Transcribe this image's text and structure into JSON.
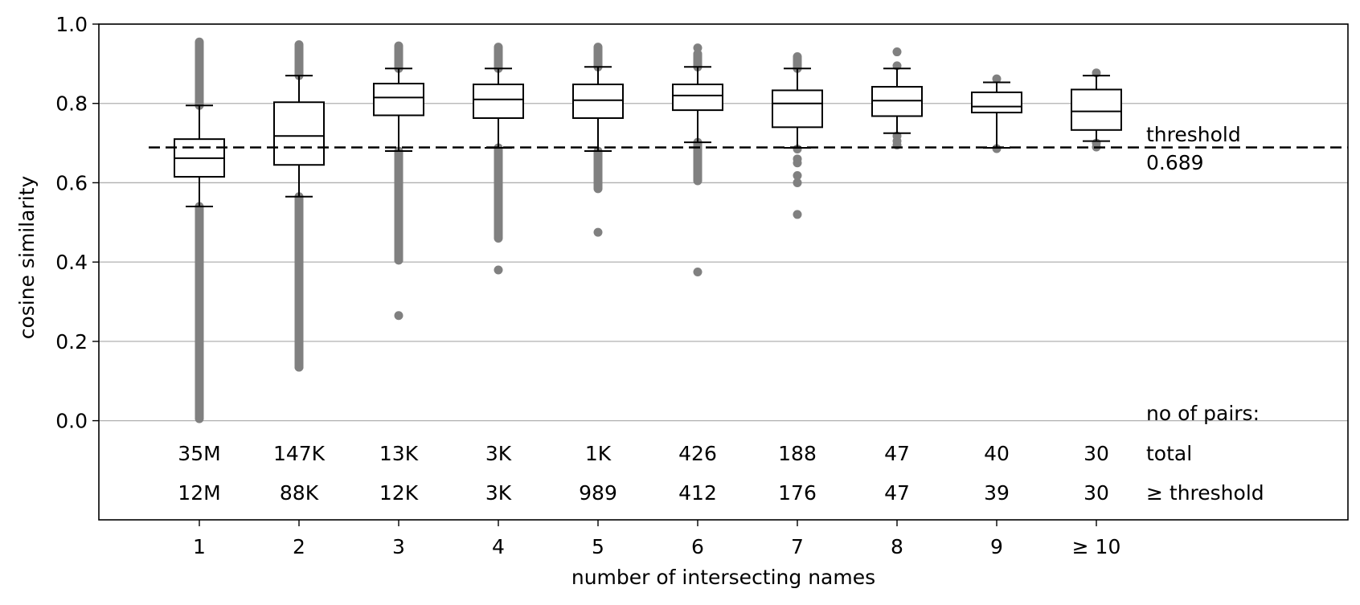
{
  "chart_data": {
    "type": "box",
    "xlabel": "number of intersecting names",
    "ylabel": "cosine similarity",
    "ylim": [
      -0.25,
      1.0
    ],
    "yticks": [
      "0.0",
      "0.2",
      "0.4",
      "0.6",
      "0.8",
      "1.0"
    ],
    "ytick_values": [
      0.0,
      0.2,
      0.4,
      0.6,
      0.8,
      1.0
    ],
    "grid": "horizontal",
    "categories": [
      "1",
      "2",
      "3",
      "4",
      "5",
      "6",
      "7",
      "8",
      "9",
      "≥ 10"
    ],
    "boxes": [
      {
        "whislo": 0.54,
        "q1": 0.615,
        "med": 0.662,
        "q3": 0.71,
        "whishi": 0.795
      },
      {
        "whislo": 0.565,
        "q1": 0.645,
        "med": 0.718,
        "q3": 0.803,
        "whishi": 0.87
      },
      {
        "whislo": 0.68,
        "q1": 0.77,
        "med": 0.815,
        "q3": 0.85,
        "whishi": 0.888
      },
      {
        "whislo": 0.688,
        "q1": 0.763,
        "med": 0.81,
        "q3": 0.848,
        "whishi": 0.888
      },
      {
        "whislo": 0.68,
        "q1": 0.763,
        "med": 0.808,
        "q3": 0.848,
        "whishi": 0.892
      },
      {
        "whislo": 0.702,
        "q1": 0.783,
        "med": 0.82,
        "q3": 0.848,
        "whishi": 0.892
      },
      {
        "whislo": 0.688,
        "q1": 0.74,
        "med": 0.8,
        "q3": 0.833,
        "whishi": 0.888
      },
      {
        "whislo": 0.725,
        "q1": 0.768,
        "med": 0.807,
        "q3": 0.842,
        "whishi": 0.888
      },
      {
        "whislo": 0.688,
        "q1": 0.777,
        "med": 0.792,
        "q3": 0.828,
        "whishi": 0.853
      },
      {
        "whislo": 0.705,
        "q1": 0.733,
        "med": 0.78,
        "q3": 0.835,
        "whishi": 0.87
      }
    ],
    "outliers": [
      {
        "low": [
          0.005,
          0.54
        ],
        "high": [
          0.795,
          0.955
        ],
        "points": []
      },
      {
        "low": [
          0.135,
          0.565
        ],
        "high": [
          0.87,
          0.948
        ],
        "points": [
          0.135,
          0.15,
          0.185,
          0.2,
          0.22,
          0.245
        ]
      },
      {
        "low": [
          0.405,
          0.68
        ],
        "high": [
          0.888,
          0.945
        ],
        "points": [
          0.265,
          0.405,
          0.42,
          0.44
        ]
      },
      {
        "low": [
          0.46,
          0.688
        ],
        "high": [
          0.888,
          0.942
        ],
        "points": [
          0.38,
          0.48,
          0.495
        ]
      },
      {
        "low": [
          0.585,
          0.68
        ],
        "high": [
          0.892,
          0.942
        ],
        "points": [
          0.475
        ]
      },
      {
        "low": [
          0.605,
          0.702
        ],
        "high": [
          0.892,
          0.925
        ],
        "points": [
          0.375,
          0.61,
          0.63,
          0.645,
          0.67,
          0.94
        ]
      },
      {
        "low": [],
        "high": [
          0.888,
          0.918
        ],
        "points": [
          0.52,
          0.6,
          0.618,
          0.65,
          0.66,
          0.685
        ]
      },
      {
        "low": [],
        "high": [],
        "points": [
          0.695,
          0.705,
          0.718,
          0.895,
          0.93
        ]
      },
      {
        "low": [],
        "high": [],
        "points": [
          0.686,
          0.862
        ]
      },
      {
        "low": [],
        "high": [],
        "points": [
          0.69,
          0.7,
          0.877
        ]
      }
    ],
    "threshold": {
      "value": 0.689,
      "label": "threshold",
      "value_label": "0.689"
    },
    "counts": {
      "heading": "no of pairs:",
      "total_label": "total",
      "above_label": "≥ threshold",
      "total": [
        "35M",
        "147K",
        "13K",
        "3K",
        "1K",
        "426",
        "188",
        "47",
        "40",
        "30"
      ],
      "above": [
        "12M",
        "88K",
        "12K",
        "3K",
        "989",
        "412",
        "176",
        "47",
        "39",
        "30"
      ]
    },
    "colors": {
      "box": "#000000",
      "outlier": "#808080",
      "grid": "#b0b0b0",
      "threshold": "#000000"
    }
  }
}
